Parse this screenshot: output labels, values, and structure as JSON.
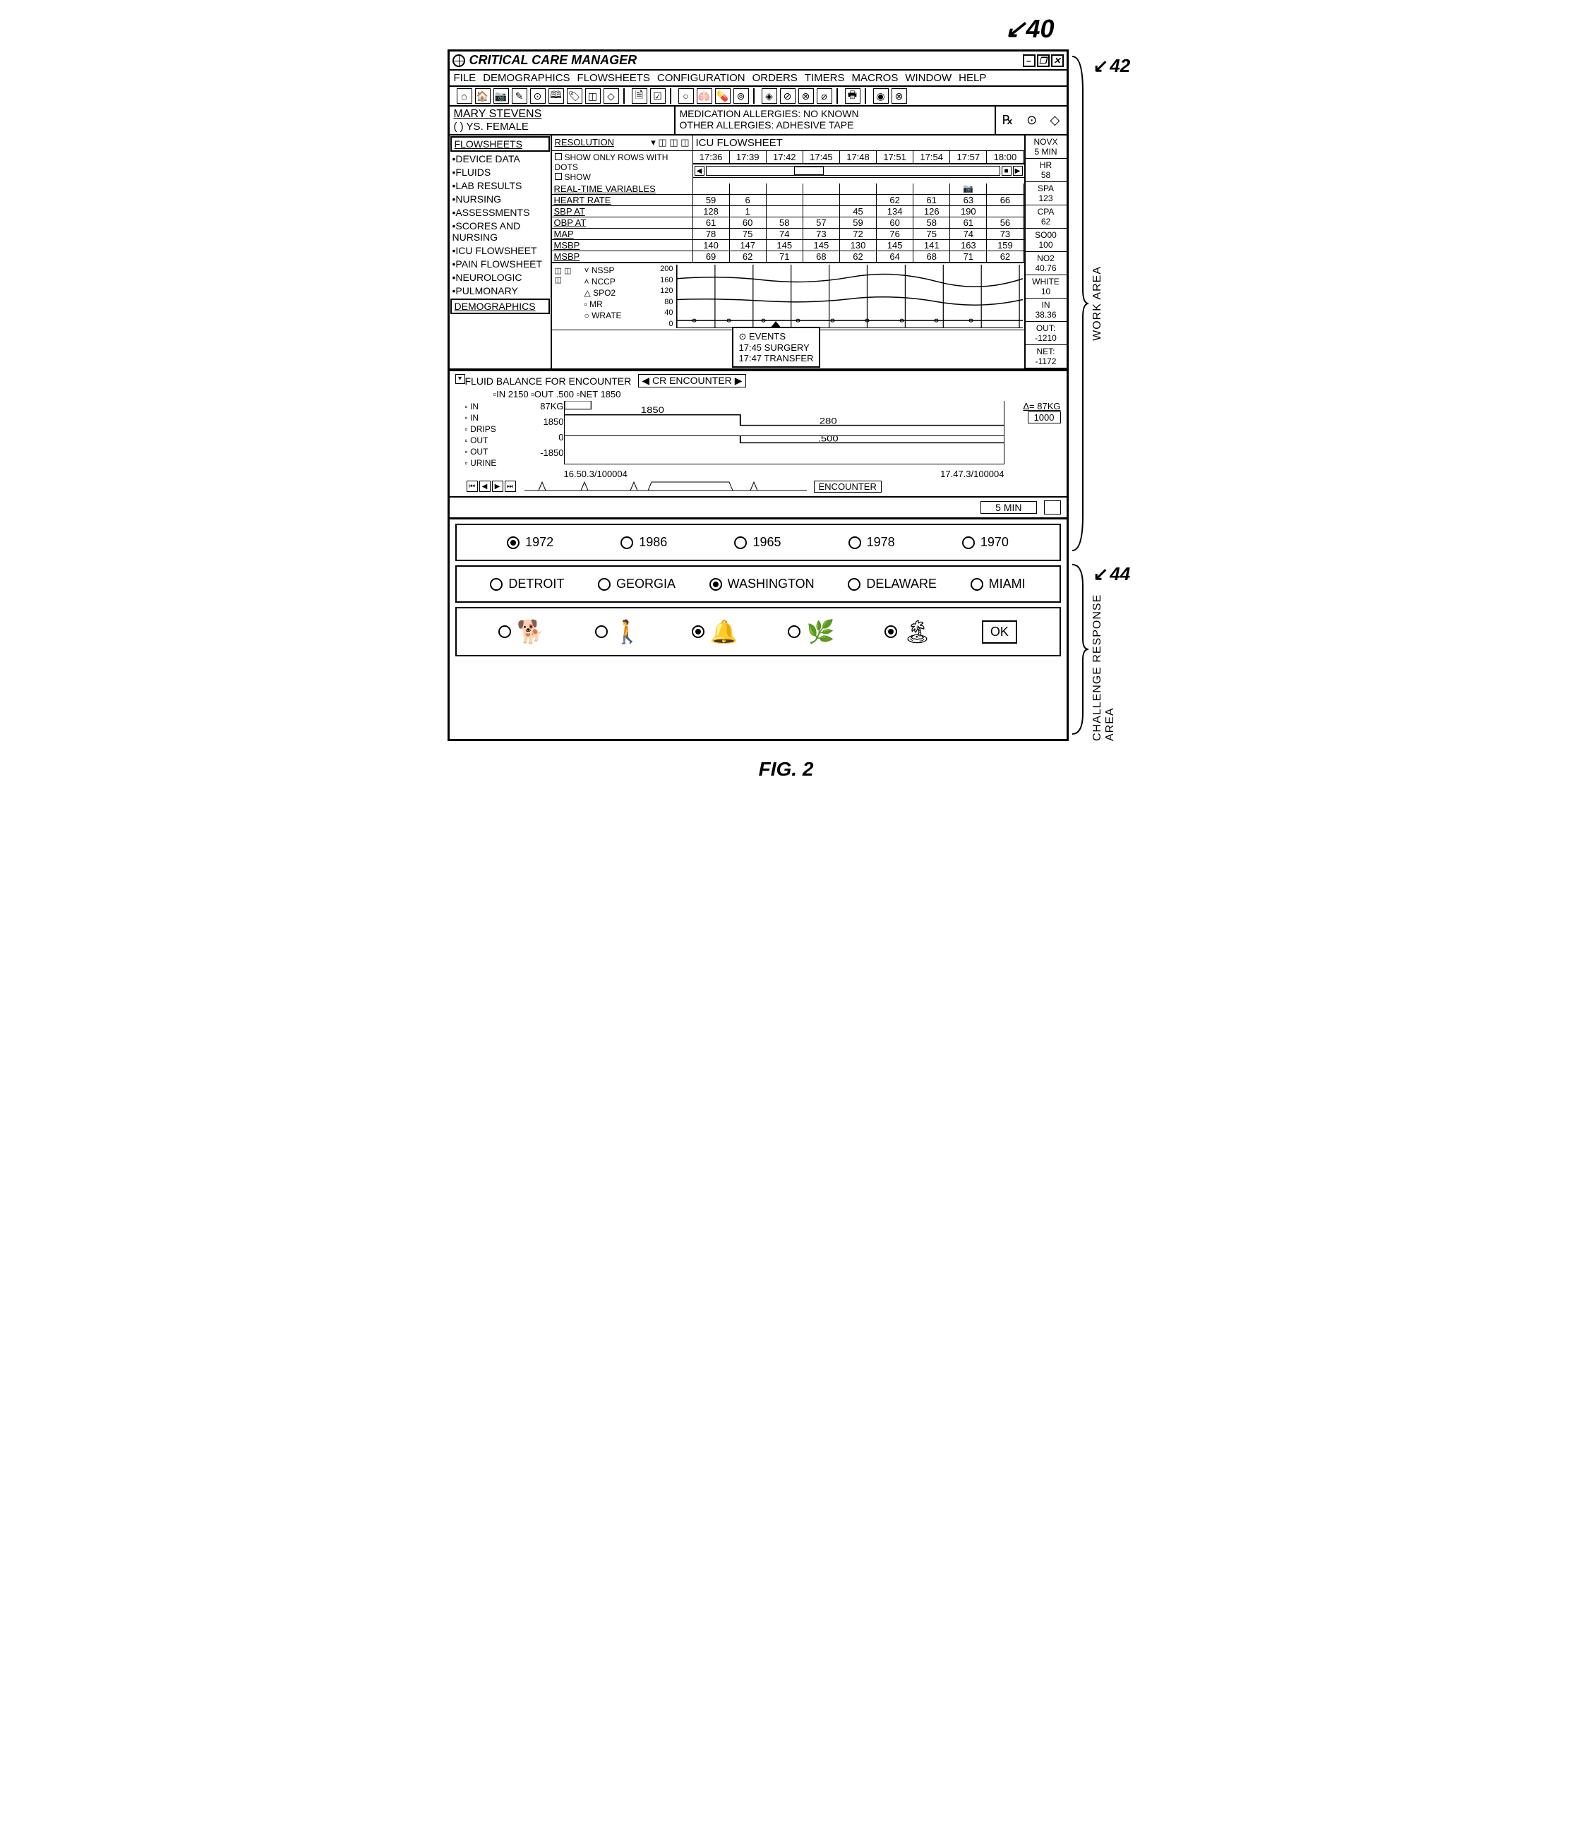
{
  "figure": {
    "label40": "40",
    "label42": "42",
    "label44": "44",
    "caption": "FIG. 2",
    "workAreaLabel": "WORK AREA",
    "challengeLabel": "CHALLENGE RESPONSE AREA"
  },
  "title": "CRITICAL CARE MANAGER",
  "menu": [
    "FILE",
    "DEMOGRAPHICS",
    "FLOWSHEETS",
    "CONFIGURATION",
    "ORDERS",
    "TIMERS",
    "MACROS",
    "WINDOW",
    "HELP"
  ],
  "patient": {
    "name": "MARY STEVENS",
    "demo": "( ) YS. FEMALE",
    "allergy1": "MEDICATION ALLERGIES: NO KNOWN",
    "allergy2": "OTHER ALLERGIES: ADHESIVE TAPE"
  },
  "sidebar": {
    "title": "FLOWSHEETS",
    "items": [
      "•DEVICE DATA",
      "•FLUIDS",
      "•LAB RESULTS",
      "•NURSING",
      "•ASSESSMENTS",
      "•SCORES AND NURSING",
      "•ICU FLOWSHEET",
      "•PAIN FLOWSHEET",
      "•NEUROLOGIC",
      "•PULMONARY"
    ],
    "bottom": "DEMOGRAPHICS"
  },
  "resolution": {
    "label": "RESOLUTION",
    "icuLabel": "ICU FLOWSHEET",
    "opt1": "SHOW ONLY ROWS WITH DOTS",
    "opt2": "SHOW"
  },
  "timebar": [
    "17:36",
    "17:39",
    "17:42",
    "17:45",
    "17:48",
    "17:51",
    "17:54",
    "17:57",
    "18:00"
  ],
  "realtime": {
    "header": "REAL-TIME VARIABLES",
    "rows": [
      {
        "label": "HEART RATE",
        "cells": [
          "59",
          "6",
          "",
          "",
          "",
          "62",
          "61",
          "63",
          "66"
        ]
      },
      {
        "label": "SBP AT",
        "cells": [
          "128",
          "1",
          "",
          "",
          "45",
          "134",
          "126",
          "190",
          ""
        ]
      },
      {
        "label": "OBP AT",
        "cells": [
          "61",
          "60",
          "58",
          "57",
          "59",
          "60",
          "58",
          "61",
          "56"
        ]
      },
      {
        "label": "MAP",
        "cells": [
          "78",
          "75",
          "74",
          "73",
          "72",
          "76",
          "75",
          "74",
          "73"
        ]
      },
      {
        "label": "MSBP",
        "cells": [
          "140",
          "147",
          "145",
          "145",
          "130",
          "145",
          "141",
          "163",
          "159"
        ]
      },
      {
        "label": "MSBP",
        "cells": [
          "69",
          "62",
          "71",
          "68",
          "62",
          "64",
          "68",
          "71",
          "62"
        ]
      }
    ],
    "eventsHeader": "⊙    EVENTS",
    "event1": "17:45 SURGERY",
    "event2": "17:47 TRANSFER"
  },
  "chart": {
    "legend": [
      "˅ NSSP",
      "˄ NCCP",
      "△ SPO2",
      "▫ MR",
      "○ WRATE"
    ],
    "yaxis": [
      "200",
      "160",
      "120",
      "80",
      "40",
      "0"
    ]
  },
  "rightRail": [
    {
      "t": "NOVX",
      "b": "5 MIN"
    },
    {
      "t": "HR",
      "b": "58"
    },
    {
      "t": "SPA",
      "b": "123"
    },
    {
      "t": "CPA",
      "b": "62"
    },
    {
      "t": "SO00",
      "b": "100"
    },
    {
      "t": "NO2",
      "b": "40.76"
    },
    {
      "t": "WHITE",
      "b": "10"
    },
    {
      "t": "IN",
      "b": "38.36"
    },
    {
      "t": "OUT:",
      "b": "-1210"
    },
    {
      "t": "NET:",
      "b": "-1172"
    }
  ],
  "fluid": {
    "title": "FLUID BALANCE FOR ENCOUNTER",
    "selector": "CR ENCOUNTER",
    "legendLine": "▫IN 2150   ▫OUT .500   ▫NET 1850",
    "labels": [
      "▫ IN",
      "▫ IN",
      "▫ DRIPS",
      "▫ OUT",
      "▫ OUT",
      "▫ URINE"
    ],
    "yvals": [
      "87KG",
      "1850",
      "0",
      "-1850"
    ],
    "delta": "Δ= 87KG",
    "deltaBox": "1000",
    "plotVals": [
      "1850",
      "280",
      ".500"
    ],
    "t1": "16.50.3/100004",
    "t2": "17.47.3/100004",
    "encLabel": "ENCOUNTER"
  },
  "footer": {
    "time": "5 MIN"
  },
  "challenge": {
    "row1": [
      {
        "label": "1972",
        "sel": true
      },
      {
        "label": "1986",
        "sel": false
      },
      {
        "label": "1965",
        "sel": false
      },
      {
        "label": "1978",
        "sel": false
      },
      {
        "label": "1970",
        "sel": false
      }
    ],
    "row2": [
      {
        "label": "DETROIT",
        "sel": false
      },
      {
        "label": "GEORGIA",
        "sel": false
      },
      {
        "label": "WASHINGTON",
        "sel": true
      },
      {
        "label": "DELAWARE",
        "sel": false
      },
      {
        "label": "MIAMI",
        "sel": false
      }
    ],
    "row3": [
      {
        "pict": "🐕",
        "sel": false
      },
      {
        "pict": "🚶",
        "sel": false
      },
      {
        "pict": "🔔",
        "sel": true
      },
      {
        "pict": "🌿",
        "sel": false
      },
      {
        "pict": "🏝",
        "sel": true
      }
    ],
    "ok": "OK"
  }
}
